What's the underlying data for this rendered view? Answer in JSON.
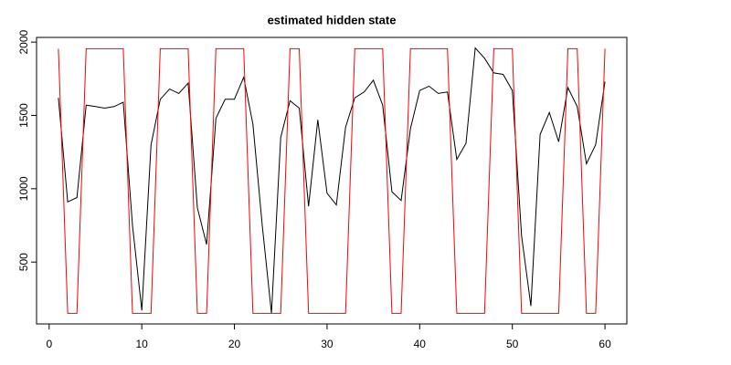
{
  "chart_data": {
    "type": "line",
    "title": "estimated hidden state",
    "x": [
      1,
      2,
      3,
      4,
      5,
      6,
      7,
      8,
      9,
      10,
      11,
      12,
      13,
      14,
      15,
      16,
      17,
      18,
      19,
      20,
      21,
      22,
      23,
      24,
      25,
      26,
      27,
      28,
      29,
      30,
      31,
      32,
      33,
      34,
      35,
      36,
      37,
      38,
      39,
      40,
      41,
      42,
      43,
      44,
      45,
      46,
      47,
      48,
      49,
      50,
      51,
      52,
      53,
      54,
      55,
      56,
      57,
      58,
      59,
      60
    ],
    "series": [
      {
        "color": "#000000",
        "values": [
          1620,
          910,
          940,
          1570,
          1560,
          1550,
          1560,
          1590,
          750,
          170,
          1300,
          1610,
          1680,
          1650,
          1720,
          870,
          620,
          1480,
          1610,
          1610,
          1760,
          1440,
          750,
          150,
          1350,
          1600,
          1550,
          880,
          1470,
          970,
          890,
          1420,
          1620,
          1660,
          1740,
          1570,
          980,
          920,
          1410,
          1670,
          1700,
          1650,
          1660,
          1200,
          1310,
          1960,
          1890,
          1790,
          1780,
          1670,
          680,
          200,
          1370,
          1520,
          1320,
          1690,
          1560,
          1170,
          1300,
          1730
        ]
      },
      {
        "color": "#ff0000",
        "values": [
          1955,
          150,
          150,
          1955,
          1955,
          1955,
          1955,
          1955,
          150,
          150,
          150,
          1955,
          1955,
          1955,
          1955,
          150,
          150,
          1955,
          1955,
          1955,
          1955,
          150,
          150,
          150,
          150,
          1955,
          1955,
          150,
          150,
          150,
          150,
          150,
          1955,
          1955,
          1955,
          1955,
          150,
          150,
          1955,
          1955,
          1955,
          1955,
          1955,
          150,
          150,
          150,
          150,
          1955,
          1955,
          1955,
          150,
          150,
          150,
          150,
          150,
          1955,
          1955,
          150,
          150,
          1955
        ]
      }
    ],
    "xlim": [
      -1.36,
      62.36
    ],
    "xticks": [
      0,
      10,
      20,
      30,
      40,
      50,
      60
    ],
    "ylim": [
      78,
      2032
    ],
    "yticks": [
      500,
      1000,
      1500,
      2000
    ]
  }
}
